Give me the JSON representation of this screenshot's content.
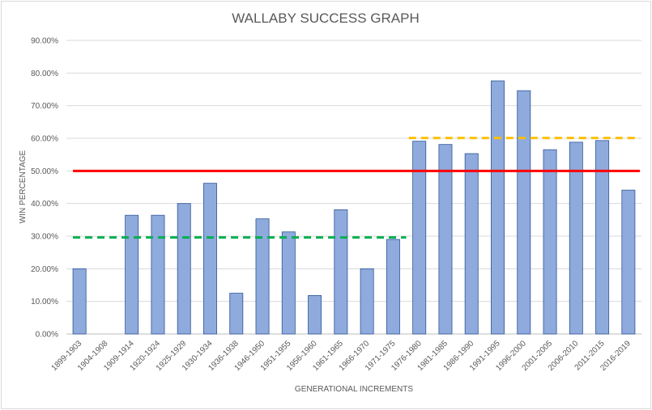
{
  "chart_data": {
    "type": "bar",
    "title": "WALLABY SUCCESS GRAPH",
    "xlabel": "GENERATIONAL INCREMENTS",
    "ylabel": "WIN PERCENTAGE",
    "ylim": [
      0,
      90
    ],
    "y_ticks": [
      "0.00%",
      "10.00%",
      "20.00%",
      "30.00%",
      "40.00%",
      "50.00%",
      "60.00%",
      "70.00%",
      "80.00%",
      "90.00%"
    ],
    "grid": true,
    "categories": [
      "1899-1903",
      "1904-1908",
      "1909-1914",
      "1920-1924",
      "1925-1929",
      "1930-1934",
      "1936-1938",
      "1946-1950",
      "1951-1955",
      "1956-1960",
      "1961-1965",
      "1966-1970",
      "1971-1975",
      "1976-1980",
      "1981-1985",
      "1986-1990",
      "1991-1995",
      "1996-2000",
      "2001-2005",
      "2006-2010",
      "2011-2015",
      "2016-2019"
    ],
    "values": [
      20.0,
      0.0,
      36.4,
      36.4,
      40.0,
      46.2,
      12.5,
      35.3,
      31.3,
      11.8,
      38.1,
      20.0,
      29.0,
      59.1,
      58.1,
      55.3,
      77.6,
      74.6,
      56.5,
      58.8,
      59.3,
      44.1
    ],
    "bar_color": "#8faadc",
    "bar_edge_color": "#2f5597",
    "reference_lines": [
      {
        "value": 50.0,
        "color": "#ff0000",
        "style": "solid",
        "from_category": 0,
        "to_category": 21
      },
      {
        "value": 29.6,
        "color": "#00b050",
        "style": "dashed",
        "from_category": 0,
        "to_category": 12
      },
      {
        "value": 60.1,
        "color": "#ffc000",
        "style": "dashed",
        "from_category": 13,
        "to_category": 21
      }
    ]
  }
}
